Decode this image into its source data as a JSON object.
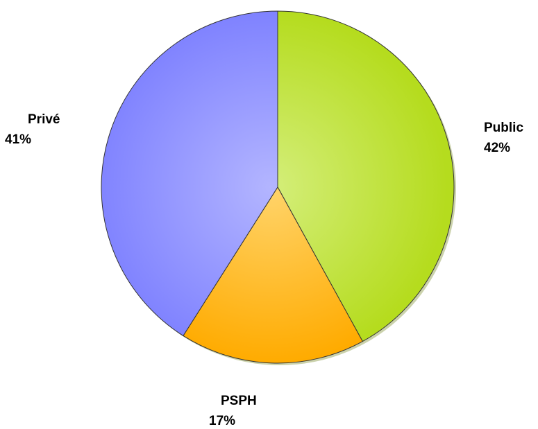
{
  "chart_data": {
    "type": "pie",
    "slices": [
      {
        "label": "Public",
        "value": 42,
        "value_label": "42%",
        "color": "#b5dc1e",
        "highlight": "#d4ee7a"
      },
      {
        "label": "PSPH",
        "value": 17,
        "value_label": "17%",
        "color": "#ffab00",
        "highlight": "#ffd46b"
      },
      {
        "label": "Privé",
        "value": 41,
        "value_label": "41%",
        "color": "#7f82ff",
        "highlight": "#b3b5ff"
      }
    ],
    "start": "12 o'clock",
    "direction": "clockwise",
    "legend": "none"
  }
}
